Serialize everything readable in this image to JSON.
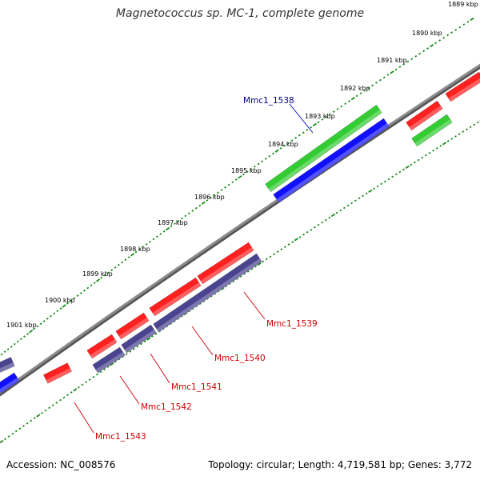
{
  "title": "Magnetococcus sp. MC-1, complete genome",
  "footer": {
    "accession": "Accession: NC_008576",
    "stats": "Topology: circular; Length: 4,719,581 bp; Genes: 3,772"
  },
  "scale_labels": [
    "1889 kbp",
    "1890 kbp",
    "1891 kbp",
    "1892 kbp",
    "1893 kbp",
    "1894 kbp",
    "1895 kbp",
    "1896 kbp",
    "1897 kbp",
    "1898 kbp",
    "1899 kbp",
    "1900 kbp",
    "1901 kbp"
  ],
  "gene_labels": [
    {
      "name": "Mmc1_1538",
      "strand": "forward",
      "color": "#00008b"
    },
    {
      "name": "Mmc1_1539",
      "strand": "reverse",
      "color": "#cc0000"
    },
    {
      "name": "Mmc1_1540",
      "strand": "reverse",
      "color": "#cc0000"
    },
    {
      "name": "Mmc1_1541",
      "strand": "reverse",
      "color": "#cc0000"
    },
    {
      "name": "Mmc1_1542",
      "strand": "reverse",
      "color": "#cc0000"
    },
    {
      "name": "Mmc1_1543",
      "strand": "reverse",
      "color": "#cc0000"
    }
  ],
  "colors": {
    "backbone": "#8c8c8c",
    "tick": "#1a8c1a",
    "cds": "#ff2020",
    "gene": "#1010ff",
    "gene_reverse": "#4a4490",
    "orf_forward": "#33cc33"
  }
}
